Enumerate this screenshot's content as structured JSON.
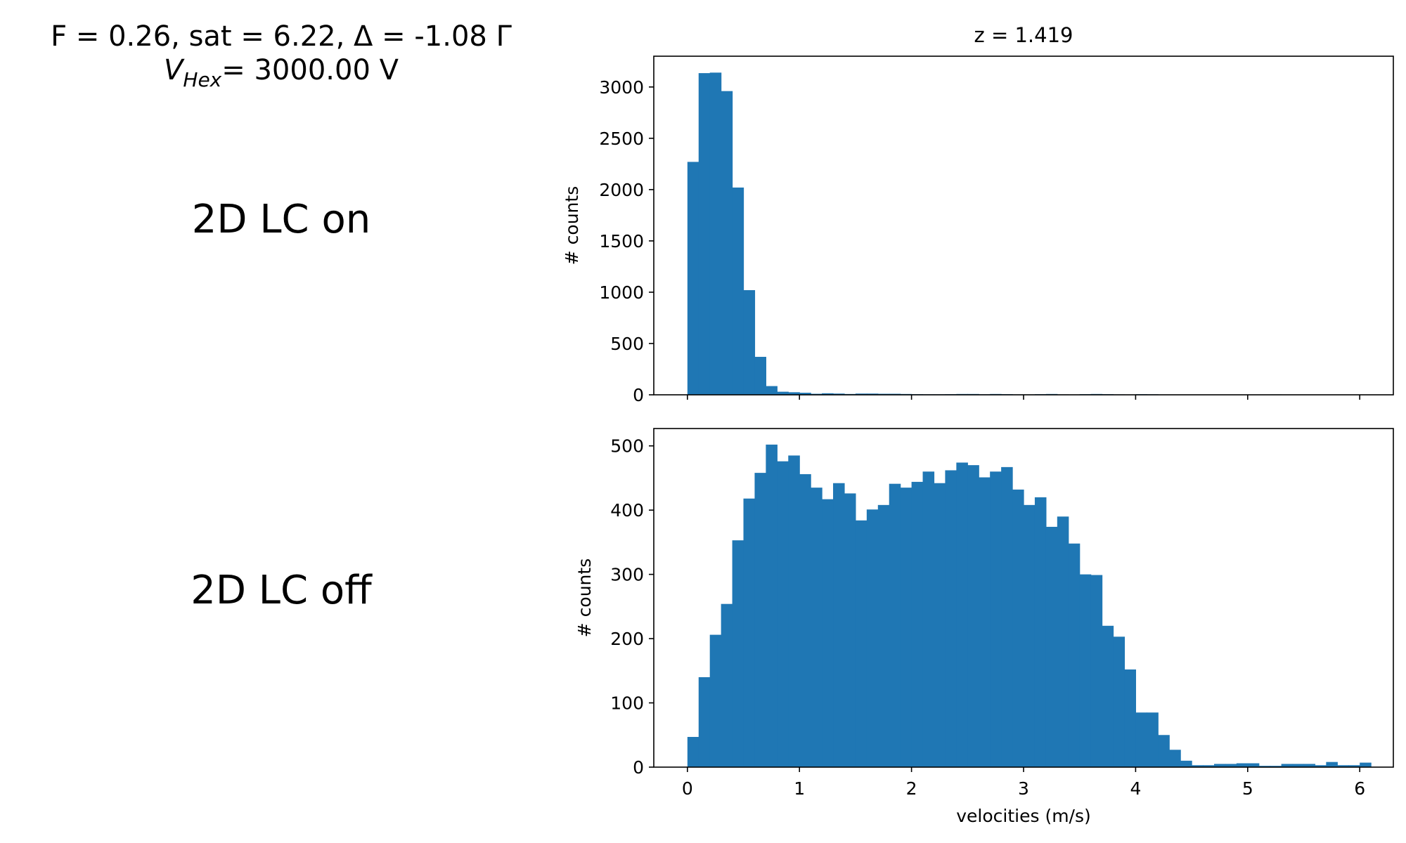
{
  "header": {
    "line1": "F = 0.26, sat = 6.22, Δ = -1.08 Γ",
    "vhex_symbol": "V",
    "vhex_sub": "Hex",
    "vhex_value": "= 3000.00 V"
  },
  "labels": {
    "top": "2D LC on",
    "bottom": "2D LC off"
  },
  "chart_data": [
    {
      "type": "bar",
      "title": "z = 1.419",
      "xlabel": "",
      "ylabel": "# counts",
      "xlim": [
        -0.3,
        6.3
      ],
      "ylim": [
        0,
        3300
      ],
      "yticks": [
        0,
        500,
        1000,
        1500,
        2000,
        2500,
        3000
      ],
      "xticks": [
        0,
        1,
        2,
        3,
        4,
        5,
        6
      ],
      "show_xticklabels": false,
      "bin_start": 0.0,
      "bin_width": 0.1,
      "color": "#1f77b4",
      "values": [
        2270,
        3135,
        3140,
        2960,
        2020,
        1020,
        370,
        85,
        30,
        25,
        20,
        10,
        15,
        12,
        8,
        12,
        12,
        10,
        10,
        8,
        6,
        5,
        5,
        6,
        8,
        8,
        5,
        8,
        6,
        4,
        4,
        6,
        8,
        4,
        3,
        6,
        8,
        6,
        4,
        3,
        6,
        5,
        3,
        2,
        2,
        2,
        2,
        2,
        2,
        2,
        2,
        2,
        4,
        2,
        2,
        2,
        2,
        2,
        2,
        2
      ]
    },
    {
      "type": "bar",
      "title": "",
      "xlabel": "velocities (m/s)",
      "ylabel": "# counts",
      "xlim": [
        -0.3,
        6.3
      ],
      "ylim": [
        0,
        527
      ],
      "yticks": [
        0,
        100,
        200,
        300,
        400,
        500
      ],
      "xticks": [
        0,
        1,
        2,
        3,
        4,
        5,
        6
      ],
      "show_xticklabels": true,
      "bin_start": 0.0,
      "bin_width": 0.1,
      "color": "#1f77b4",
      "values": [
        47,
        140,
        206,
        254,
        353,
        418,
        458,
        502,
        476,
        485,
        456,
        435,
        417,
        442,
        426,
        384,
        401,
        408,
        441,
        435,
        444,
        460,
        442,
        462,
        474,
        470,
        451,
        460,
        467,
        432,
        408,
        420,
        374,
        390,
        348,
        300,
        299,
        220,
        203,
        152,
        85,
        85,
        50,
        27,
        10,
        3,
        3,
        5,
        5,
        6,
        6,
        2,
        2,
        5,
        5,
        5,
        3,
        8,
        3,
        3,
        7
      ]
    }
  ]
}
